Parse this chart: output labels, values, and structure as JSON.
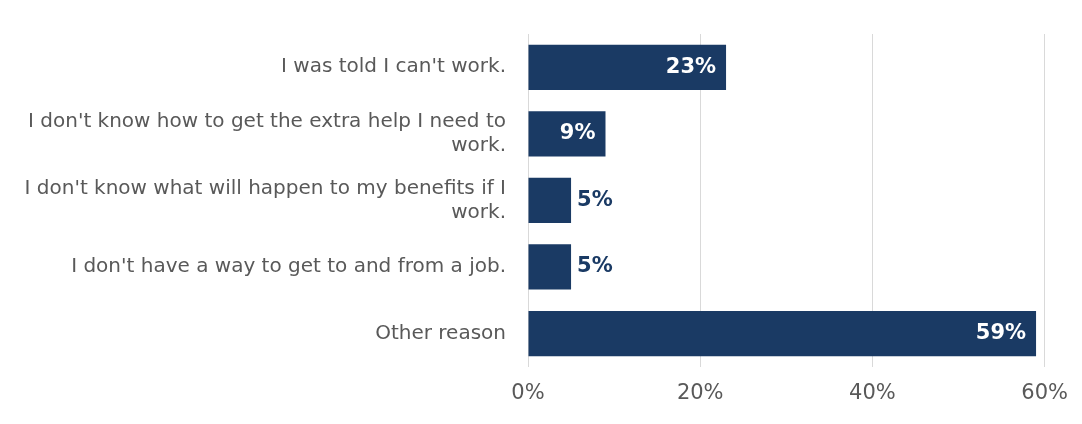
{
  "chart_data": {
    "type": "bar",
    "orientation": "horizontal",
    "categories": [
      "I was told I can't work.",
      "I don't know how to get the extra help I need to work.",
      "I don't know what will happen to my benefits if I work.",
      "I don't have a way to get to and from a job.",
      "Other reason"
    ],
    "values": [
      23,
      9,
      5,
      5,
      59
    ],
    "value_labels": [
      "23%",
      "9%",
      "5%",
      "5%",
      "59%"
    ],
    "color": "#1a3a64",
    "xlim": [
      0,
      60
    ],
    "xticks": [
      {
        "value": 0,
        "label": "0%"
      },
      {
        "value": 20,
        "label": "20%"
      },
      {
        "value": 40,
        "label": "40%"
      },
      {
        "value": 60,
        "label": "60%"
      }
    ],
    "grid": "x"
  }
}
